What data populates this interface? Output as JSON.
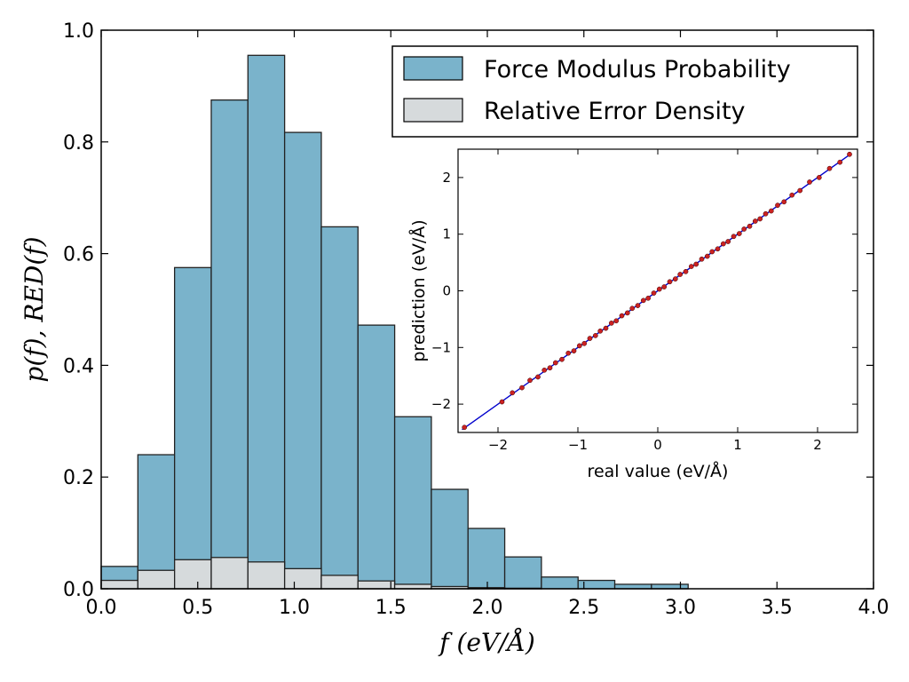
{
  "chart_data": [
    {
      "type": "bar",
      "chart": "main-histogram",
      "xlabel": "f (eV/Å)",
      "ylabel": "p(f), RED(f)",
      "xlim": [
        0.0,
        4.0
      ],
      "ylim": [
        0.0,
        1.0
      ],
      "x_ticks": [
        "0.0",
        "0.5",
        "1.0",
        "1.5",
        "2.0",
        "2.5",
        "3.0",
        "3.5",
        "4.0"
      ],
      "y_ticks": [
        "0.0",
        "0.2",
        "0.4",
        "0.6",
        "0.8",
        "1.0"
      ],
      "bin_edges": [
        0.0,
        0.19,
        0.38,
        0.57,
        0.76,
        0.95,
        1.14,
        1.33,
        1.52,
        1.71,
        1.9,
        2.09,
        2.28,
        2.47,
        2.66,
        2.85,
        3.04
      ],
      "series": [
        {
          "name": "Force Modulus Probability",
          "color": "#7ab3cb",
          "values": [
            0.04,
            0.24,
            0.575,
            0.875,
            0.955,
            0.817,
            0.648,
            0.472,
            0.308,
            0.178,
            0.108,
            0.057,
            0.021,
            0.015,
            0.008,
            0.008
          ]
        },
        {
          "name": "Relative Error Density",
          "color": "#d6dadc",
          "values": [
            0.015,
            0.033,
            0.052,
            0.056,
            0.048,
            0.036,
            0.024,
            0.014,
            0.008,
            0.004,
            0.002,
            0.001,
            0.0,
            0.0,
            0.0,
            0.0
          ]
        }
      ],
      "legend": {
        "position": "top-right",
        "entries": [
          "Force Modulus Probability",
          "Relative Error Density"
        ]
      }
    },
    {
      "type": "scatter",
      "chart": "inset-parity",
      "xlabel": "real value (eV/Å)",
      "ylabel": "prediction (eV/Å)",
      "xlim": [
        -2.5,
        2.5
      ],
      "ylim": [
        -2.5,
        2.5
      ],
      "x_ticks": [
        "−2",
        "−1",
        "0",
        "1",
        "2"
      ],
      "y_ticks": [
        "−2",
        "−1",
        "0",
        "1",
        "2"
      ],
      "identity_line": {
        "from": [
          -2.45,
          -2.45
        ],
        "to": [
          2.42,
          2.42
        ],
        "color": "#0000cc"
      },
      "points_color": "#cc2222",
      "points": [
        [
          -2.42,
          -2.41
        ],
        [
          -1.95,
          -1.96
        ],
        [
          -1.82,
          -1.8
        ],
        [
          -1.7,
          -1.71
        ],
        [
          -1.6,
          -1.58
        ],
        [
          -1.5,
          -1.52
        ],
        [
          -1.42,
          -1.4
        ],
        [
          -1.35,
          -1.36
        ],
        [
          -1.28,
          -1.27
        ],
        [
          -1.2,
          -1.21
        ],
        [
          -1.12,
          -1.1
        ],
        [
          -1.05,
          -1.06
        ],
        [
          -0.98,
          -0.97
        ],
        [
          -0.92,
          -0.93
        ],
        [
          -0.85,
          -0.84
        ],
        [
          -0.78,
          -0.79
        ],
        [
          -0.72,
          -0.71
        ],
        [
          -0.65,
          -0.66
        ],
        [
          -0.58,
          -0.57
        ],
        [
          -0.52,
          -0.53
        ],
        [
          -0.45,
          -0.44
        ],
        [
          -0.38,
          -0.39
        ],
        [
          -0.32,
          -0.31
        ],
        [
          -0.25,
          -0.26
        ],
        [
          -0.18,
          -0.17
        ],
        [
          -0.12,
          -0.13
        ],
        [
          -0.05,
          -0.04
        ],
        [
          0.02,
          0.03
        ],
        [
          0.08,
          0.07
        ],
        [
          0.15,
          0.16
        ],
        [
          0.22,
          0.21
        ],
        [
          0.28,
          0.29
        ],
        [
          0.35,
          0.34
        ],
        [
          0.42,
          0.43
        ],
        [
          0.48,
          0.47
        ],
        [
          0.55,
          0.56
        ],
        [
          0.62,
          0.61
        ],
        [
          0.68,
          0.69
        ],
        [
          0.75,
          0.74
        ],
        [
          0.82,
          0.83
        ],
        [
          0.88,
          0.87
        ],
        [
          0.95,
          0.96
        ],
        [
          1.02,
          1.01
        ],
        [
          1.08,
          1.09
        ],
        [
          1.15,
          1.14
        ],
        [
          1.22,
          1.23
        ],
        [
          1.28,
          1.27
        ],
        [
          1.35,
          1.36
        ],
        [
          1.42,
          1.41
        ],
        [
          1.5,
          1.51
        ],
        [
          1.58,
          1.57
        ],
        [
          1.68,
          1.69
        ],
        [
          1.78,
          1.77
        ],
        [
          1.9,
          1.92
        ],
        [
          2.02,
          2.0
        ],
        [
          2.15,
          2.16
        ],
        [
          2.28,
          2.27
        ],
        [
          2.4,
          2.41
        ]
      ]
    }
  ]
}
